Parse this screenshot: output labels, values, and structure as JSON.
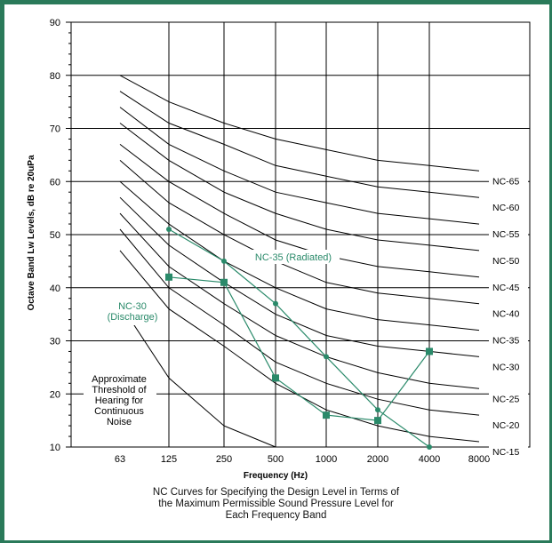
{
  "chart_data": {
    "type": "line",
    "ylabel": "Octave Band Lw Levels, dB re 20uPa",
    "xlabel": "Frequency (Hz)",
    "caption": [
      "NC Curves for Specifying the Design Level in Terms of",
      "the Maximum Permissible Sound Pressure Level for",
      "Each Frequency Band"
    ],
    "x_categories": [
      "63",
      "125",
      "250",
      "500",
      "1000",
      "2000",
      "4000",
      "8000"
    ],
    "y_ticks": [
      10,
      20,
      30,
      40,
      50,
      60,
      70,
      80,
      90
    ],
    "ylim": [
      10,
      90
    ],
    "grid": true,
    "nc_curves": [
      {
        "name": "NC-15",
        "values": [
          47,
          36,
          29,
          22,
          17,
          14,
          12,
          11
        ]
      },
      {
        "name": "NC-20",
        "values": [
          51,
          40,
          33,
          26,
          22,
          19,
          17,
          16
        ]
      },
      {
        "name": "NC-25",
        "values": [
          54,
          44,
          37,
          31,
          27,
          24,
          22,
          21
        ]
      },
      {
        "name": "NC-30",
        "values": [
          57,
          48,
          41,
          35,
          31,
          29,
          28,
          27
        ]
      },
      {
        "name": "NC-35",
        "values": [
          60,
          52,
          45,
          40,
          36,
          34,
          33,
          32
        ]
      },
      {
        "name": "NC-40",
        "values": [
          64,
          56,
          50,
          45,
          41,
          39,
          38,
          37
        ]
      },
      {
        "name": "NC-45",
        "values": [
          67,
          60,
          54,
          49,
          46,
          44,
          43,
          42
        ]
      },
      {
        "name": "NC-50",
        "values": [
          71,
          64,
          58,
          54,
          51,
          49,
          48,
          47
        ]
      },
      {
        "name": "NC-55",
        "values": [
          74,
          67,
          62,
          58,
          56,
          54,
          53,
          52
        ]
      },
      {
        "name": "NC-60",
        "values": [
          77,
          71,
          67,
          63,
          61,
          59,
          58,
          57
        ]
      },
      {
        "name": "NC-65",
        "values": [
          80,
          75,
          71,
          68,
          66,
          64,
          63,
          62
        ]
      }
    ],
    "threshold": {
      "label": [
        "Approximate",
        "Threshold of",
        "Hearing for",
        "Continuous",
        "Noise"
      ],
      "values": [
        37,
        23,
        14,
        10
      ]
    },
    "series": [
      {
        "name": "NC-35 (Radiated)",
        "marker": "circle",
        "values": [
          51,
          45,
          37,
          27,
          17,
          10
        ]
      },
      {
        "name": "NC-30 (Discharge)",
        "label_lines": [
          "NC-30",
          "(Discharge)"
        ],
        "marker": "square",
        "values": [
          42,
          41,
          23,
          16,
          15,
          28
        ]
      }
    ],
    "series_color": "#2a8a6a",
    "frame_color": "#2a7a5a"
  }
}
